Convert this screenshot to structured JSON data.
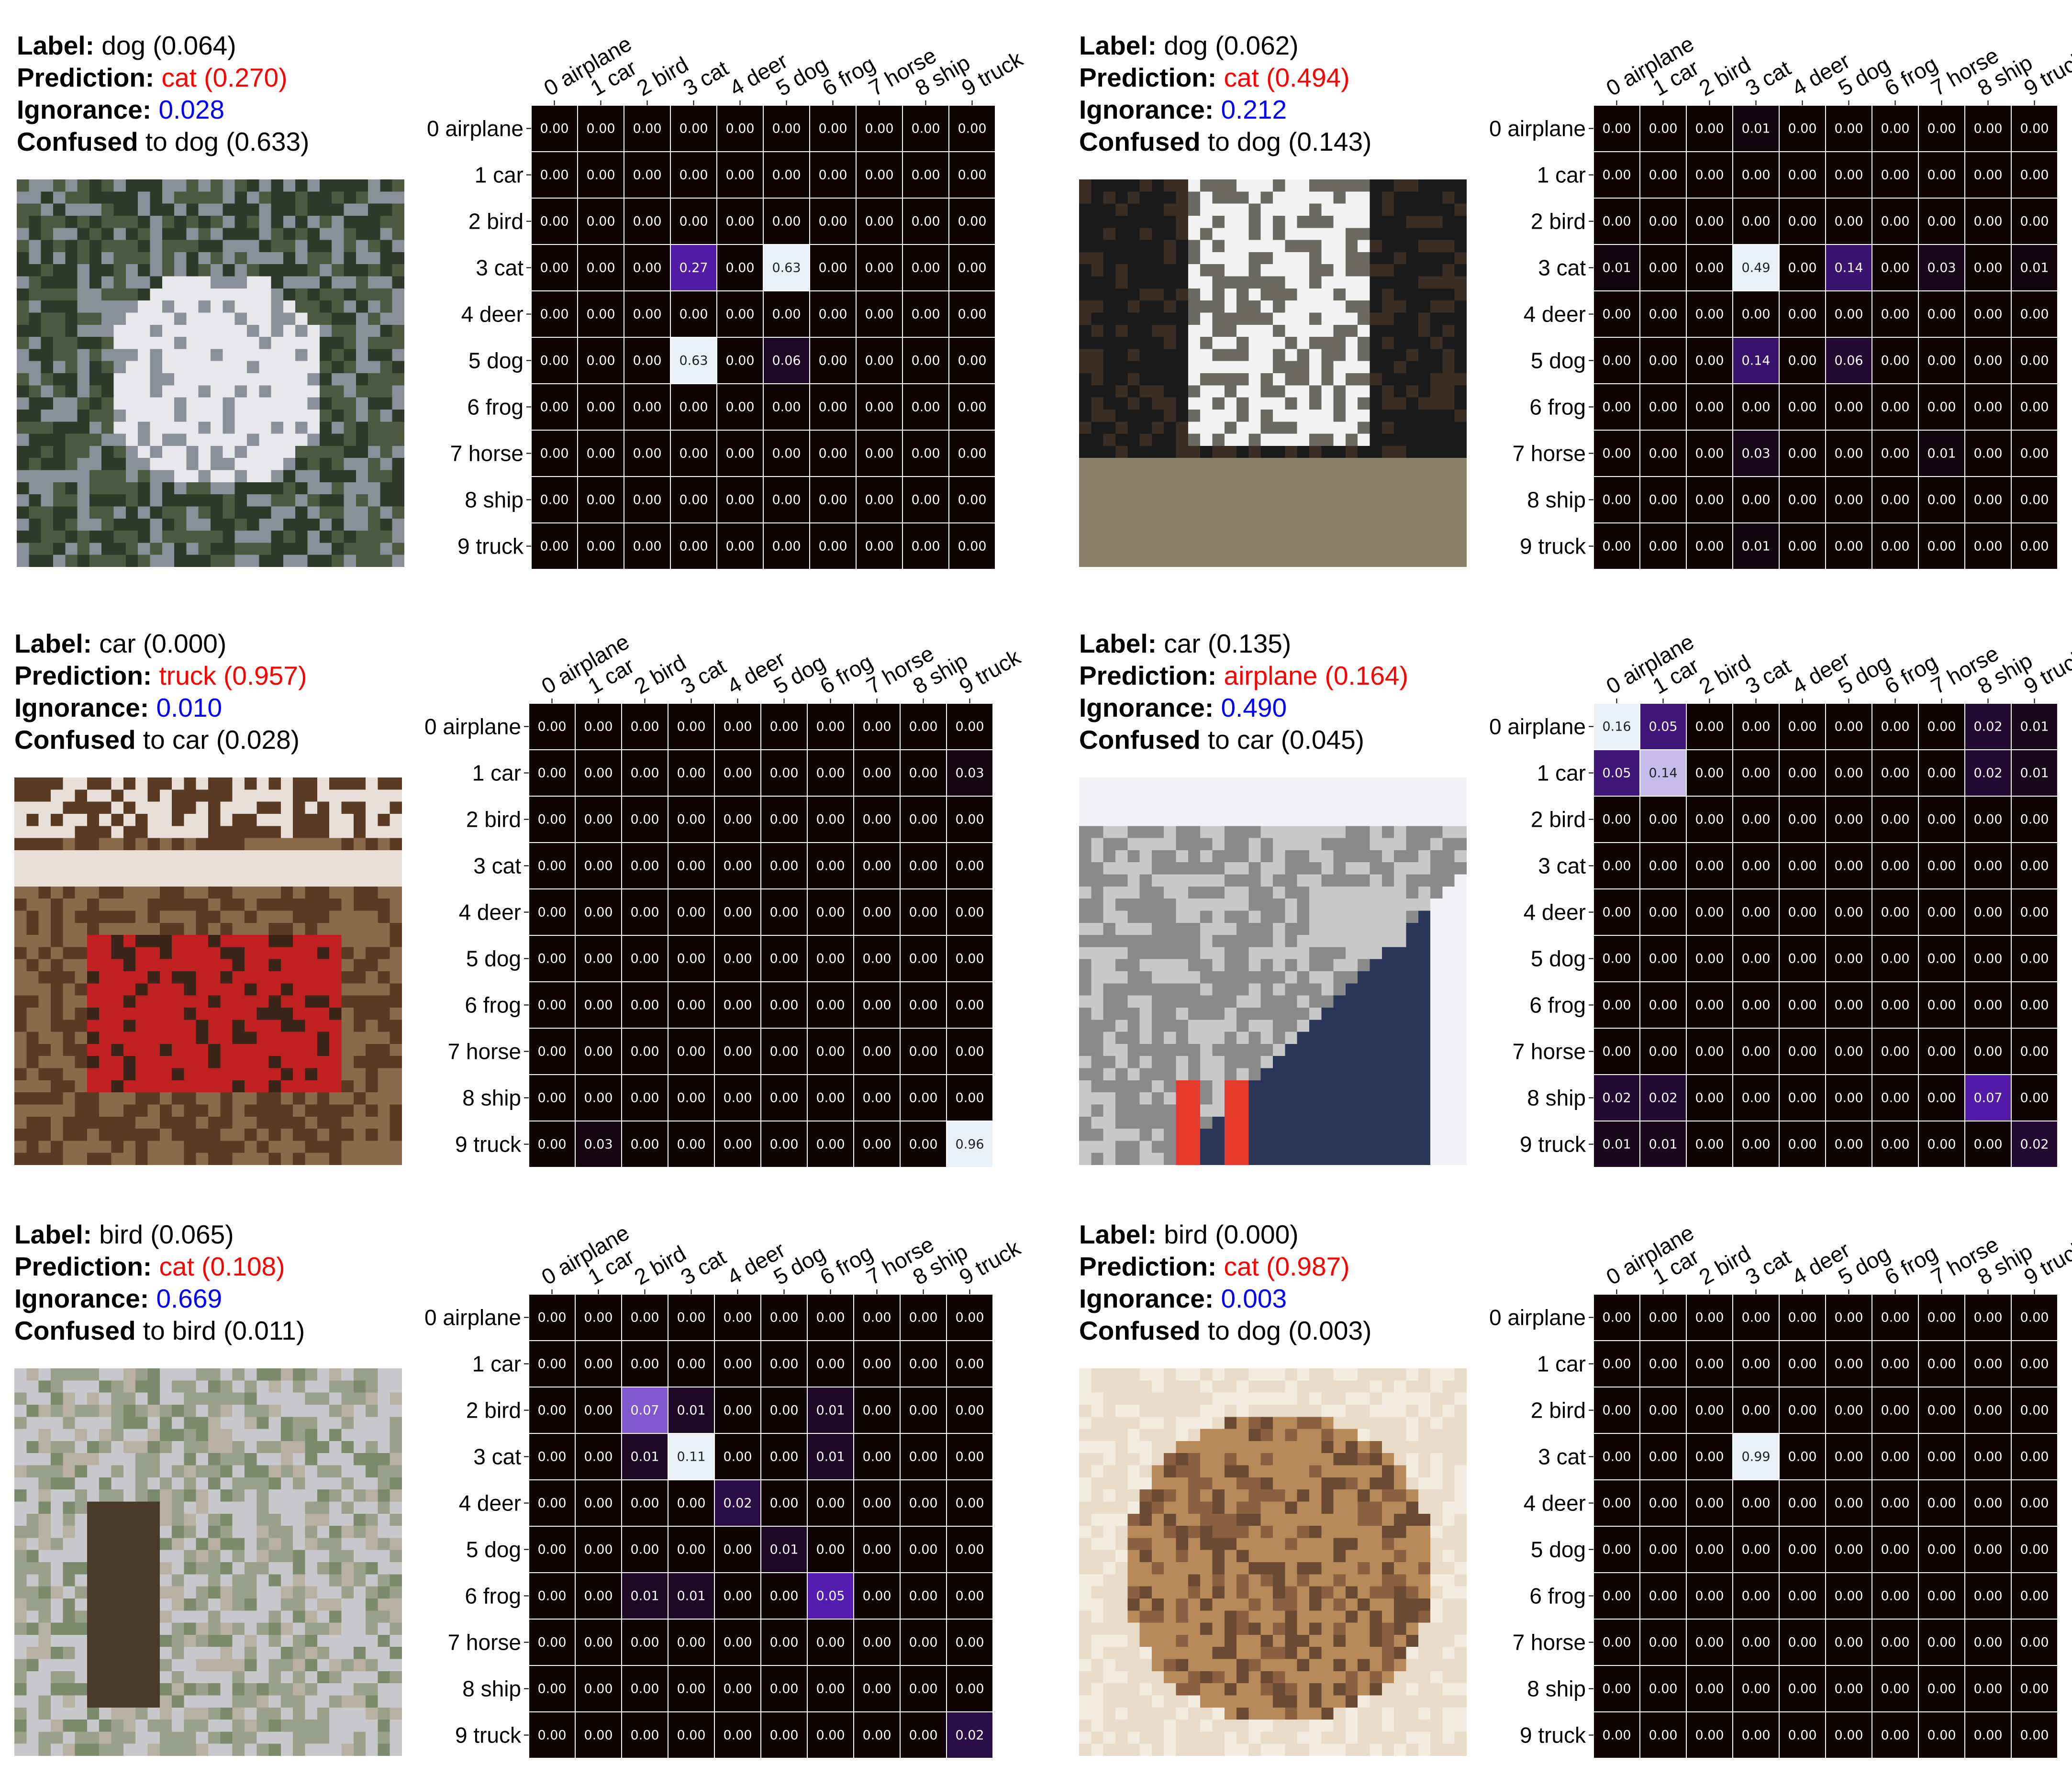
{
  "colors": {
    "prediction": "#ff0000",
    "ignorance": "#0000ff",
    "heatmap_low": "#0f0303",
    "heatmap_mid": "#5b1fc0",
    "heatmap_high": "#eaf0f8"
  },
  "chart_data": [
    {
      "type": "heatmap",
      "info": {
        "label_key": "Label:",
        "label_value": "dog (0.064)",
        "prediction_key": "Prediction:",
        "prediction_value": "cat (0.270)",
        "ignorance_key": "Ignorance:",
        "ignorance_value": "0.028",
        "confused_key": "Confused",
        "confused_value": "to dog (0.633)"
      },
      "image": {
        "subject": "white-dog-photo",
        "palette": [
          "#2d3a2a",
          "#4d5a42",
          "#e8e8ec",
          "#8a8f9a",
          "#1e2a1e"
        ]
      },
      "x_tick_labels": [
        "0 airplane",
        "1 car",
        "2 bird",
        "3 cat",
        "4 deer",
        "5 dog",
        "6 frog",
        "7 horse",
        "8 ship",
        "9 truck"
      ],
      "y_tick_labels": [
        "0 airplane",
        "1 car",
        "2 bird",
        "3 cat",
        "4 deer",
        "5 dog",
        "6 frog",
        "7 horse",
        "8 ship",
        "9 truck"
      ],
      "values": [
        [
          0,
          0,
          0,
          0,
          0,
          0,
          0,
          0,
          0,
          0
        ],
        [
          0,
          0,
          0,
          0,
          0,
          0,
          0,
          0,
          0,
          0
        ],
        [
          0,
          0,
          0,
          0,
          0,
          0,
          0,
          0,
          0,
          0
        ],
        [
          0,
          0,
          0,
          0.27,
          0,
          0.63,
          0,
          0,
          0,
          0
        ],
        [
          0,
          0,
          0,
          0,
          0,
          0,
          0,
          0,
          0,
          0
        ],
        [
          0,
          0,
          0,
          0.63,
          0,
          0.06,
          0,
          0,
          0,
          0
        ],
        [
          0,
          0,
          0,
          0,
          0,
          0,
          0,
          0,
          0,
          0
        ],
        [
          0,
          0,
          0,
          0,
          0,
          0,
          0,
          0,
          0,
          0
        ],
        [
          0,
          0,
          0,
          0,
          0,
          0,
          0,
          0,
          0,
          0
        ],
        [
          0,
          0,
          0,
          0,
          0,
          0,
          0,
          0,
          0,
          0
        ]
      ]
    },
    {
      "type": "heatmap",
      "info": {
        "label_key": "Label:",
        "label_value": "dog (0.062)",
        "prediction_key": "Prediction:",
        "prediction_value": "cat (0.494)",
        "ignorance_key": "Ignorance:",
        "ignorance_value": "0.212",
        "confused_key": "Confused",
        "confused_value": "to dog (0.143)"
      },
      "image": {
        "subject": "dog-closeup-photo",
        "palette": [
          "#1a1a1a",
          "#f2f2f2",
          "#6a6a62",
          "#8a8068",
          "#3a2e24"
        ]
      },
      "x_tick_labels": [
        "0 airplane",
        "1 car",
        "2 bird",
        "3 cat",
        "4 deer",
        "5 dog",
        "6 frog",
        "7 horse",
        "8 ship",
        "9 truck"
      ],
      "y_tick_labels": [
        "0 airplane",
        "1 car",
        "2 bird",
        "3 cat",
        "4 deer",
        "5 dog",
        "6 frog",
        "7 horse",
        "8 ship",
        "9 truck"
      ],
      "values": [
        [
          0,
          0,
          0,
          0.01,
          0,
          0,
          0,
          0,
          0,
          0
        ],
        [
          0,
          0,
          0,
          0,
          0,
          0,
          0,
          0,
          0,
          0
        ],
        [
          0,
          0,
          0,
          0,
          0,
          0,
          0,
          0,
          0,
          0
        ],
        [
          0.01,
          0,
          0,
          0.49,
          0,
          0.14,
          0,
          0.03,
          0,
          0.01
        ],
        [
          0,
          0,
          0,
          0,
          0,
          0,
          0,
          0,
          0,
          0
        ],
        [
          0,
          0,
          0,
          0.14,
          0,
          0.06,
          0,
          0,
          0,
          0
        ],
        [
          0,
          0,
          0,
          0,
          0,
          0,
          0,
          0,
          0,
          0
        ],
        [
          0,
          0,
          0,
          0.03,
          0,
          0,
          0,
          0.01,
          0,
          0
        ],
        [
          0,
          0,
          0,
          0,
          0,
          0,
          0,
          0,
          0,
          0
        ],
        [
          0,
          0,
          0,
          0.01,
          0,
          0,
          0,
          0,
          0,
          0
        ]
      ]
    },
    {
      "type": "heatmap",
      "info": {
        "label_key": "Label:",
        "label_value": "car (0.000)",
        "prediction_key": "Prediction:",
        "prediction_value": "truck (0.957)",
        "ignorance_key": "Ignorance:",
        "ignorance_value": "0.010",
        "confused_key": "Confused",
        "confused_value": "to car (0.028)"
      },
      "image": {
        "subject": "red-car-photo",
        "palette": [
          "#5a3a22",
          "#c02020",
          "#e8e0d8",
          "#3a2418",
          "#8a6a4a"
        ]
      },
      "x_tick_labels": [
        "0 airplane",
        "1 car",
        "2 bird",
        "3 cat",
        "4 deer",
        "5 dog",
        "6 frog",
        "7 horse",
        "8 ship",
        "9 truck"
      ],
      "y_tick_labels": [
        "0 airplane",
        "1 car",
        "2 bird",
        "3 cat",
        "4 deer",
        "5 dog",
        "6 frog",
        "7 horse",
        "8 ship",
        "9 truck"
      ],
      "values": [
        [
          0,
          0,
          0,
          0,
          0,
          0,
          0,
          0,
          0,
          0
        ],
        [
          0,
          0,
          0,
          0,
          0,
          0,
          0,
          0,
          0,
          0.03
        ],
        [
          0,
          0,
          0,
          0,
          0,
          0,
          0,
          0,
          0,
          0
        ],
        [
          0,
          0,
          0,
          0,
          0,
          0,
          0,
          0,
          0,
          0
        ],
        [
          0,
          0,
          0,
          0,
          0,
          0,
          0,
          0,
          0,
          0
        ],
        [
          0,
          0,
          0,
          0,
          0,
          0,
          0,
          0,
          0,
          0
        ],
        [
          0,
          0,
          0,
          0,
          0,
          0,
          0,
          0,
          0,
          0
        ],
        [
          0,
          0,
          0,
          0,
          0,
          0,
          0,
          0,
          0,
          0
        ],
        [
          0,
          0,
          0,
          0,
          0,
          0,
          0,
          0,
          0,
          0
        ],
        [
          0,
          0.03,
          0,
          0,
          0,
          0,
          0,
          0,
          0,
          0.96
        ]
      ]
    },
    {
      "type": "heatmap",
      "info": {
        "label_key": "Label:",
        "label_value": "car (0.135)",
        "prediction_key": "Prediction:",
        "prediction_value": "airplane (0.164)",
        "ignorance_key": "Ignorance:",
        "ignorance_value": "0.490",
        "confused_key": "Confused",
        "confused_value": "to car (0.045)"
      },
      "image": {
        "subject": "road-car-photo",
        "palette": [
          "#8a8a8a",
          "#c8c8c8",
          "#2a3658",
          "#e83a2a",
          "#f2f2f6"
        ]
      },
      "x_tick_labels": [
        "0 airplane",
        "1 car",
        "2 bird",
        "3 cat",
        "4 deer",
        "5 dog",
        "6 frog",
        "7 horse",
        "8 ship",
        "9 truck"
      ],
      "y_tick_labels": [
        "0 airplane",
        "1 car",
        "2 bird",
        "3 cat",
        "4 deer",
        "5 dog",
        "6 frog",
        "7 horse",
        "8 ship",
        "9 truck"
      ],
      "values": [
        [
          0.16,
          0.05,
          0,
          0,
          0,
          0,
          0,
          0,
          0.02,
          0.01
        ],
        [
          0.05,
          0.14,
          0,
          0,
          0,
          0,
          0,
          0,
          0.02,
          0.01
        ],
        [
          0,
          0,
          0,
          0,
          0,
          0,
          0,
          0,
          0,
          0
        ],
        [
          0,
          0,
          0,
          0,
          0,
          0,
          0,
          0,
          0,
          0
        ],
        [
          0,
          0,
          0,
          0,
          0,
          0,
          0,
          0,
          0,
          0
        ],
        [
          0,
          0,
          0,
          0,
          0,
          0,
          0,
          0,
          0,
          0
        ],
        [
          0,
          0,
          0,
          0,
          0,
          0,
          0,
          0,
          0,
          0
        ],
        [
          0,
          0,
          0,
          0,
          0,
          0,
          0,
          0,
          0,
          0
        ],
        [
          0.02,
          0.02,
          0,
          0,
          0,
          0,
          0,
          0,
          0.07,
          0
        ],
        [
          0.01,
          0.01,
          0,
          0,
          0,
          0,
          0,
          0,
          0,
          0.02
        ]
      ]
    },
    {
      "type": "heatmap",
      "info": {
        "label_key": "Label:",
        "label_value": "bird (0.065)",
        "prediction_key": "Prediction:",
        "prediction_value": "cat (0.108)",
        "ignorance_key": "Ignorance:",
        "ignorance_value": "0.669",
        "confused_key": "Confused",
        "confused_value": "to bird (0.011)"
      },
      "image": {
        "subject": "bird-on-rocks-photo",
        "palette": [
          "#9aa08a",
          "#c8c8cc",
          "#4a3a2a",
          "#7a8a6a",
          "#b8b0a0"
        ]
      },
      "x_tick_labels": [
        "0 airplane",
        "1 car",
        "2 bird",
        "3 cat",
        "4 deer",
        "5 dog",
        "6 frog",
        "7 horse",
        "8 ship",
        "9 truck"
      ],
      "y_tick_labels": [
        "0 airplane",
        "1 car",
        "2 bird",
        "3 cat",
        "4 deer",
        "5 dog",
        "6 frog",
        "7 horse",
        "8 ship",
        "9 truck"
      ],
      "values": [
        [
          0,
          0,
          0,
          0,
          0,
          0,
          0,
          0,
          0,
          0
        ],
        [
          0,
          0,
          0,
          0,
          0,
          0,
          0,
          0,
          0,
          0
        ],
        [
          0,
          0,
          0.07,
          0.01,
          0,
          0,
          0.01,
          0,
          0,
          0
        ],
        [
          0,
          0,
          0.01,
          0.11,
          0,
          0,
          0.01,
          0,
          0,
          0
        ],
        [
          0,
          0,
          0,
          0,
          0.02,
          0,
          0,
          0,
          0,
          0
        ],
        [
          0,
          0,
          0,
          0,
          0,
          0.01,
          0,
          0,
          0,
          0
        ],
        [
          0,
          0,
          0.01,
          0.01,
          0,
          0,
          0.05,
          0,
          0,
          0
        ],
        [
          0,
          0,
          0,
          0,
          0,
          0,
          0,
          0,
          0,
          0
        ],
        [
          0,
          0,
          0,
          0,
          0,
          0,
          0,
          0,
          0,
          0
        ],
        [
          0,
          0,
          0,
          0,
          0,
          0,
          0,
          0,
          0,
          0.02
        ]
      ]
    },
    {
      "type": "heatmap",
      "info": {
        "label_key": "Label:",
        "label_value": "bird (0.000)",
        "prediction_key": "Prediction:",
        "prediction_value": "cat (0.987)",
        "ignorance_key": "Ignorance:",
        "ignorance_value": "0.003",
        "confused_key": "Confused",
        "confused_value": "to dog (0.003)"
      },
      "image": {
        "subject": "brown-bird-closeup-photo",
        "palette": [
          "#e8dcc8",
          "#b88a5a",
          "#8a6040",
          "#f2ece0",
          "#6a4a32"
        ]
      },
      "x_tick_labels": [
        "0 airplane",
        "1 car",
        "2 bird",
        "3 cat",
        "4 deer",
        "5 dog",
        "6 frog",
        "7 horse",
        "8 ship",
        "9 truck"
      ],
      "y_tick_labels": [
        "0 airplane",
        "1 car",
        "2 bird",
        "3 cat",
        "4 deer",
        "5 dog",
        "6 frog",
        "7 horse",
        "8 ship",
        "9 truck"
      ],
      "values": [
        [
          0,
          0,
          0,
          0,
          0,
          0,
          0,
          0,
          0,
          0
        ],
        [
          0,
          0,
          0,
          0,
          0,
          0,
          0,
          0,
          0,
          0
        ],
        [
          0,
          0,
          0,
          0,
          0,
          0,
          0,
          0,
          0,
          0
        ],
        [
          0,
          0,
          0,
          0.99,
          0,
          0,
          0,
          0,
          0,
          0
        ],
        [
          0,
          0,
          0,
          0,
          0,
          0,
          0,
          0,
          0,
          0
        ],
        [
          0,
          0,
          0,
          0,
          0,
          0,
          0,
          0,
          0,
          0
        ],
        [
          0,
          0,
          0,
          0,
          0,
          0,
          0,
          0,
          0,
          0
        ],
        [
          0,
          0,
          0,
          0,
          0,
          0,
          0,
          0,
          0,
          0
        ],
        [
          0,
          0,
          0,
          0,
          0,
          0,
          0,
          0,
          0,
          0
        ],
        [
          0,
          0,
          0,
          0,
          0,
          0,
          0,
          0,
          0,
          0
        ]
      ]
    }
  ]
}
